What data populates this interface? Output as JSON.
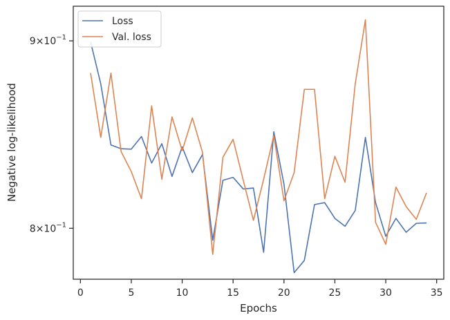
{
  "chart_data": {
    "type": "line",
    "xlabel": "Epochs",
    "ylabel": "Negative log-likelihood",
    "xlim": [
      -0.7,
      35.7
    ],
    "ylim": [
      0.7748,
      0.9198
    ],
    "y_scale": "log",
    "x_ticks": [
      0,
      5,
      10,
      15,
      20,
      25,
      30,
      35
    ],
    "y_ticks": [
      {
        "value": 0.8,
        "base": "8",
        "exp": "−1"
      },
      {
        "value": 0.9,
        "base": "9",
        "exp": "−1"
      }
    ],
    "grid": false,
    "legend_position": "upper left",
    "x": [
      1,
      2,
      3,
      4,
      5,
      6,
      7,
      8,
      9,
      10,
      11,
      12,
      13,
      14,
      15,
      16,
      17,
      18,
      19,
      20,
      21,
      22,
      23,
      24,
      25,
      26,
      27,
      28,
      29,
      30,
      31,
      32,
      33,
      34
    ],
    "series": [
      {
        "name": "Loss",
        "color": "#4c72b0",
        "values": [
          0.8995,
          0.876,
          0.843,
          0.841,
          0.8408,
          0.8475,
          0.8335,
          0.8437,
          0.8265,
          0.842,
          0.8285,
          0.838,
          0.794,
          0.8245,
          0.826,
          0.82,
          0.8205,
          0.788,
          0.85,
          0.8225,
          0.778,
          0.784,
          0.812,
          0.813,
          0.805,
          0.801,
          0.809,
          0.847,
          0.813,
          0.796,
          0.805,
          0.798,
          0.8025,
          0.8027
        ]
      },
      {
        "name": "Val. loss",
        "color": "#dd8452",
        "values": [
          0.882,
          0.847,
          0.882,
          0.8395,
          0.829,
          0.815,
          0.864,
          0.825,
          0.858,
          0.84,
          0.8575,
          0.839,
          0.787,
          0.8365,
          0.846,
          0.8245,
          0.804,
          0.825,
          0.848,
          0.814,
          0.8285,
          0.873,
          0.873,
          0.815,
          0.837,
          0.8235,
          0.876,
          0.912,
          0.803,
          0.792,
          0.821,
          0.811,
          0.8045,
          0.818
        ]
      }
    ]
  }
}
